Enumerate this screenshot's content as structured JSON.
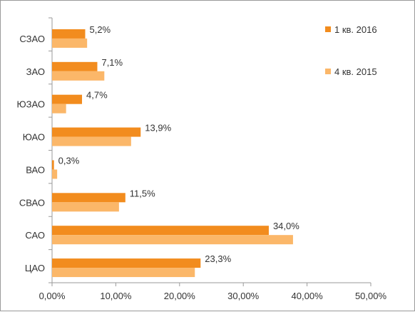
{
  "chart_data": {
    "type": "bar",
    "orientation": "horizontal",
    "categories": [
      "СЗАО",
      "ЗАО",
      "ЮЗАО",
      "ЮАО",
      "ВАО",
      "СВАО",
      "САО",
      "ЦАО"
    ],
    "series": [
      {
        "name": "1 кв. 2016",
        "color": "#f28c1e",
        "values": [
          5.2,
          7.1,
          4.7,
          13.9,
          0.3,
          11.5,
          34.0,
          23.3
        ],
        "labels": [
          "5,2%",
          "7,1%",
          "4,7%",
          "13,9%",
          "0,3%",
          "11,5%",
          "34,0%",
          "23,3%"
        ]
      },
      {
        "name": "4 кв. 2015",
        "color": "#fbb769",
        "values": [
          5.5,
          8.2,
          2.2,
          12.4,
          0.8,
          10.5,
          37.8,
          22.4
        ]
      }
    ],
    "xlim": [
      0,
      50
    ],
    "xticks": [
      "0,00%",
      "10,00%",
      "20,00%",
      "30,00%",
      "40,00%",
      "50,00%"
    ],
    "grid": false,
    "legend_position": "top-right",
    "title": "",
    "xlabel": "",
    "ylabel": ""
  }
}
